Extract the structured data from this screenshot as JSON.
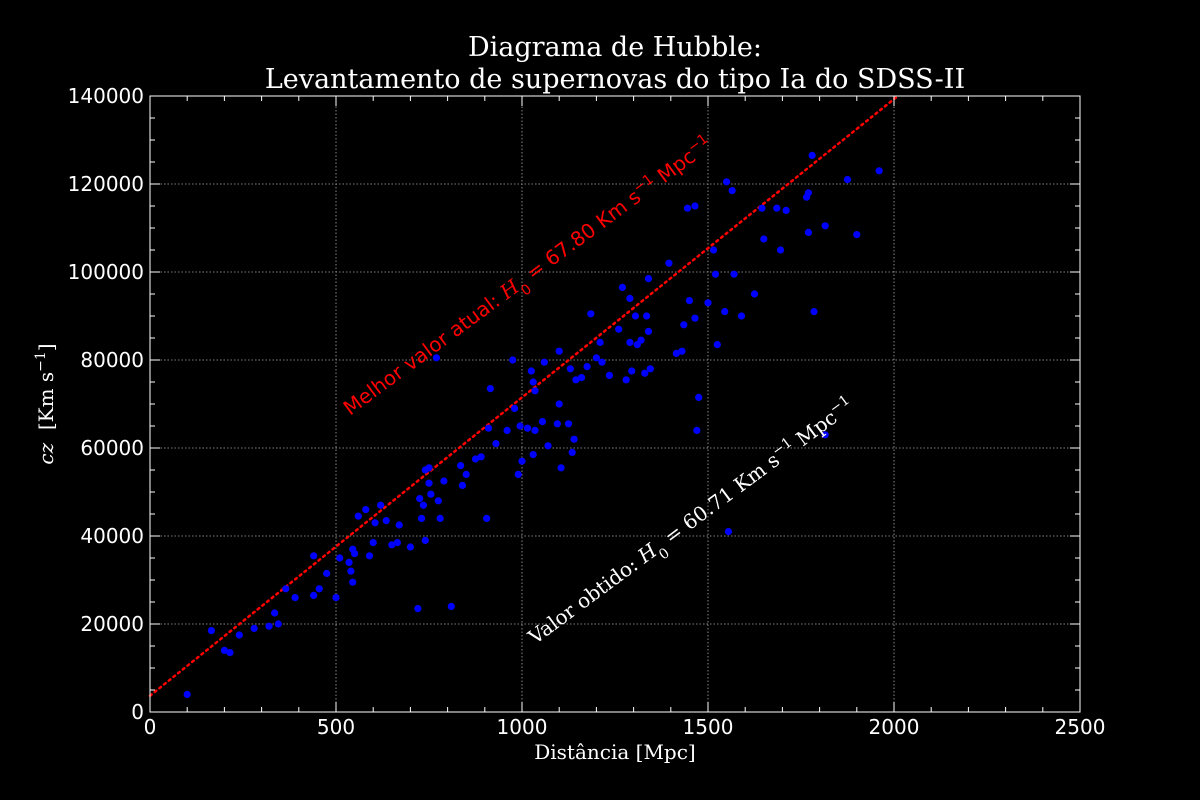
{
  "chart_data": {
    "type": "scatter",
    "title": [
      "Diagrama de Hubble:",
      "Levantamento de supernovas do tipo Ia do SDSS-II"
    ],
    "xlabel": "Distância [Mpc]",
    "ylabel": {
      "var": "cz",
      "unit": "Km s",
      "exp": "−1"
    },
    "xlim": [
      0,
      2500
    ],
    "ylim": [
      0,
      140000
    ],
    "xticks": [
      0,
      500,
      1000,
      1500,
      2000,
      2500
    ],
    "yticks": [
      0,
      20000,
      40000,
      60000,
      80000,
      100000,
      120000,
      140000
    ],
    "xtick_labels": [
      "0",
      "500",
      "1000",
      "1500",
      "2000",
      "2500"
    ],
    "ytick_labels": [
      "0",
      "20000",
      "40000",
      "60000",
      "80000",
      "100000",
      "120000",
      "140000"
    ],
    "grid": true,
    "colors": {
      "background": "#000000",
      "points": "#0000ff",
      "fit_line": "#ff0000",
      "text": "#ffffff",
      "grid": "#aaaaaa"
    },
    "fit_line": {
      "slope": 67.8,
      "intercept": 3700,
      "x_range": [
        0,
        2010
      ],
      "style": "dotted"
    },
    "annotations": {
      "best": {
        "prefix": "Melhor valor atual: ",
        "var": "H",
        "sub": "0",
        "value": " = 67.80 Km s",
        "exp1": "−1",
        "unit": " Mpc",
        "exp2": "−1",
        "color": "#ff0000"
      },
      "obtained": {
        "prefix": "Valor obtido: ",
        "var": "H",
        "sub": "0",
        "value": " = 60.71 Km s",
        "exp1": "−1",
        "unit": " Mpc",
        "exp2": "−1",
        "color": "#ffffff"
      }
    },
    "series": [
      {
        "points": [
          [
            100,
            4000
          ],
          [
            165,
            18500
          ],
          [
            200,
            14000
          ],
          [
            215,
            13500
          ],
          [
            240,
            17500
          ],
          [
            280,
            19000
          ],
          [
            320,
            19500
          ],
          [
            335,
            22500
          ],
          [
            345,
            20000
          ],
          [
            365,
            28000
          ],
          [
            390,
            26000
          ],
          [
            440,
            26500
          ],
          [
            440,
            35500
          ],
          [
            455,
            28000
          ],
          [
            475,
            31500
          ],
          [
            500,
            26000
          ],
          [
            510,
            35000
          ],
          [
            535,
            34000
          ],
          [
            540,
            32000
          ],
          [
            545,
            29500
          ],
          [
            545,
            37000
          ],
          [
            550,
            36000
          ],
          [
            560,
            44500
          ],
          [
            580,
            46000
          ],
          [
            590,
            35500
          ],
          [
            600,
            38500
          ],
          [
            605,
            43000
          ],
          [
            620,
            47000
          ],
          [
            635,
            43500
          ],
          [
            650,
            38000
          ],
          [
            665,
            38500
          ],
          [
            670,
            42500
          ],
          [
            700,
            37500
          ],
          [
            720,
            23500
          ],
          [
            725,
            48500
          ],
          [
            730,
            44000
          ],
          [
            735,
            47000
          ],
          [
            740,
            39000
          ],
          [
            740,
            55000
          ],
          [
            750,
            55500
          ],
          [
            750,
            52000
          ],
          [
            755,
            49500
          ],
          [
            770,
            80500
          ],
          [
            775,
            48000
          ],
          [
            780,
            44000
          ],
          [
            790,
            52500
          ],
          [
            810,
            24000
          ],
          [
            835,
            56000
          ],
          [
            840,
            51500
          ],
          [
            850,
            54000
          ],
          [
            875,
            57500
          ],
          [
            890,
            58000
          ],
          [
            905,
            44000
          ],
          [
            910,
            64500
          ],
          [
            915,
            73500
          ],
          [
            930,
            61000
          ],
          [
            960,
            64000
          ],
          [
            975,
            80000
          ],
          [
            980,
            69000
          ],
          [
            990,
            54000
          ],
          [
            995,
            65000
          ],
          [
            1000,
            57000
          ],
          [
            1015,
            64500
          ],
          [
            1025,
            77500
          ],
          [
            1030,
            58500
          ],
          [
            1030,
            75000
          ],
          [
            1035,
            73000
          ],
          [
            1035,
            64000
          ],
          [
            1055,
            66000
          ],
          [
            1060,
            79500
          ],
          [
            1070,
            60500
          ],
          [
            1095,
            65500
          ],
          [
            1100,
            82000
          ],
          [
            1100,
            70000
          ],
          [
            1105,
            55500
          ],
          [
            1125,
            65500
          ],
          [
            1130,
            78000
          ],
          [
            1135,
            59000
          ],
          [
            1140,
            62000
          ],
          [
            1145,
            75500
          ],
          [
            1160,
            76000
          ],
          [
            1175,
            78500
          ],
          [
            1185,
            90500
          ],
          [
            1200,
            80500
          ],
          [
            1210,
            84000
          ],
          [
            1215,
            79500
          ],
          [
            1235,
            76500
          ],
          [
            1260,
            87000
          ],
          [
            1270,
            96500
          ],
          [
            1280,
            75500
          ],
          [
            1290,
            94000
          ],
          [
            1290,
            84000
          ],
          [
            1295,
            77500
          ],
          [
            1305,
            90000
          ],
          [
            1310,
            83500
          ],
          [
            1320,
            84500
          ],
          [
            1330,
            77000
          ],
          [
            1335,
            90000
          ],
          [
            1340,
            98500
          ],
          [
            1340,
            86500
          ],
          [
            1345,
            78000
          ],
          [
            1395,
            102000
          ],
          [
            1415,
            81500
          ],
          [
            1430,
            82000
          ],
          [
            1435,
            88000
          ],
          [
            1445,
            114500
          ],
          [
            1450,
            93500
          ],
          [
            1465,
            115000
          ],
          [
            1465,
            89500
          ],
          [
            1470,
            64000
          ],
          [
            1475,
            71500
          ],
          [
            1500,
            93000
          ],
          [
            1515,
            105000
          ],
          [
            1520,
            99500
          ],
          [
            1525,
            83500
          ],
          [
            1545,
            91000
          ],
          [
            1550,
            120500
          ],
          [
            1555,
            41000
          ],
          [
            1565,
            118500
          ],
          [
            1570,
            99500
          ],
          [
            1590,
            90000
          ],
          [
            1625,
            95000
          ],
          [
            1645,
            114500
          ],
          [
            1650,
            107500
          ],
          [
            1685,
            114500
          ],
          [
            1695,
            105000
          ],
          [
            1710,
            114000
          ],
          [
            1765,
            117000
          ],
          [
            1770,
            118000
          ],
          [
            1770,
            109000
          ],
          [
            1780,
            126500
          ],
          [
            1785,
            91000
          ],
          [
            1815,
            110500
          ],
          [
            1815,
            63000
          ],
          [
            1875,
            121000
          ],
          [
            1900,
            108500
          ],
          [
            1960,
            123000
          ]
        ]
      }
    ]
  }
}
